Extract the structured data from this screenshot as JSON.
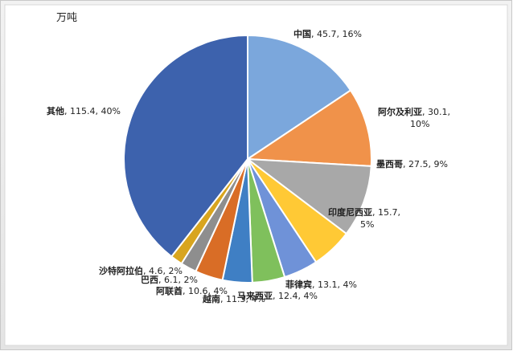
{
  "chart_data": {
    "type": "pie",
    "unit": "万吨",
    "categories": [
      "中国",
      "阿尔及利亚",
      "墨西哥",
      "印度尼西亚",
      "菲律宾",
      "马来西亚",
      "越南",
      "阿联酋",
      "巴西",
      "沙特阿拉伯",
      "其他"
    ],
    "values": [
      45.7,
      30.1,
      27.5,
      15.7,
      13.1,
      12.4,
      11.3,
      10.6,
      6.1,
      4.6,
      115.4
    ],
    "share_labels": [
      "16%",
      "10%",
      "9%",
      "5%",
      "4%",
      "4%",
      "4%",
      "4%",
      "2%",
      "2%",
      "40%"
    ],
    "colors": [
      "#7ba7dc",
      "#f0924a",
      "#a8a8a8",
      "#ffc935",
      "#6f92d8",
      "#7fc05c",
      "#3f7fc4",
      "#d96d26",
      "#8e8e8e",
      "#d8a51f",
      "#3d62ad"
    ]
  }
}
